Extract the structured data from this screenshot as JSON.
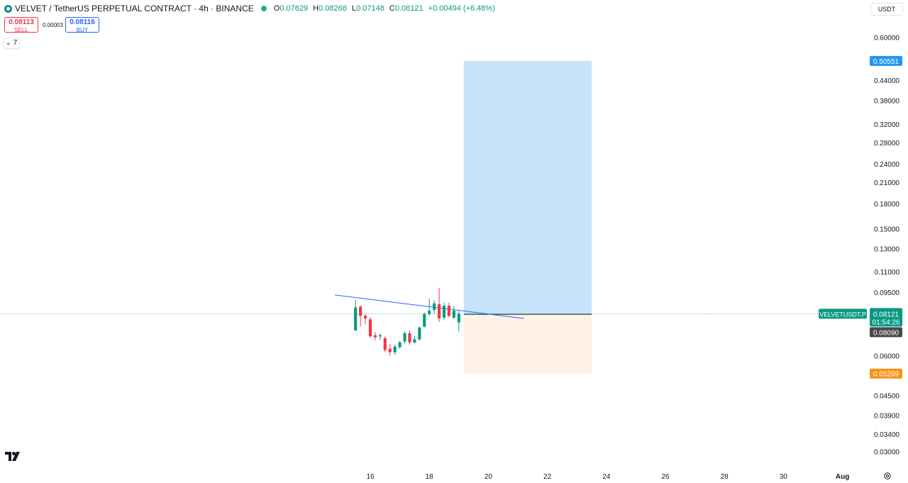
{
  "header": {
    "symbol": "VELVET / TetherUS PERPETUAL CONTRACT · 4h · BINANCE",
    "ohlc": {
      "o_label": "O",
      "o": "0.07629",
      "h_label": "H",
      "h": "0.08268",
      "l_label": "L",
      "l": "0.07148",
      "c_label": "C",
      "c": "0.08121",
      "change": "+0.00494 (+6.48%)"
    }
  },
  "trade": {
    "sell_price": "0.08113",
    "sell_label": "SELL",
    "spread": "0.00003",
    "buy_price": "0.08116",
    "buy_label": "BUY"
  },
  "indicators_toggle": "7",
  "currency": "USDT",
  "colors": {
    "up": "#089981",
    "down": "#f23645",
    "trendline": "#2962ff",
    "target_zone": "#c7e3f9",
    "stop_zone": "#fdf2e3",
    "target_label": "#2196f3",
    "stop_label": "#f7931a",
    "price_label": "#089981",
    "entry_label": "#4a4a4a"
  },
  "chart_data": {
    "type": "candlestick",
    "scale": "log",
    "ylim": [
      0.028,
      0.68
    ],
    "y_ticks": [
      "0.60000",
      "0.44000",
      "0.38000",
      "0.32000",
      "0.28000",
      "0.24000",
      "0.21000",
      "0.18000",
      "0.15000",
      "0.13000",
      "0.11000",
      "0.09500",
      "0.06000",
      "0.04500",
      "0.03900",
      "0.03400",
      "0.03000"
    ],
    "x_ticks": [
      "16",
      "18",
      "20",
      "22",
      "24",
      "26",
      "28",
      "30",
      "Aug"
    ],
    "x_tick_days": [
      16,
      18,
      20,
      22,
      24,
      26,
      28,
      30,
      32
    ],
    "interval_hours": 4,
    "candles": [
      {
        "d": 15.5,
        "o": 0.072,
        "h": 0.0895,
        "l": 0.0718,
        "c": 0.085
      },
      {
        "d": 15.667,
        "o": 0.0855,
        "h": 0.0862,
        "l": 0.074,
        "c": 0.08
      },
      {
        "d": 15.833,
        "o": 0.08,
        "h": 0.0812,
        "l": 0.0752,
        "c": 0.0785
      },
      {
        "d": 16.0,
        "o": 0.078,
        "h": 0.0792,
        "l": 0.0682,
        "c": 0.069
      },
      {
        "d": 16.167,
        "o": 0.0695,
        "h": 0.071,
        "l": 0.067,
        "c": 0.0685
      },
      {
        "d": 16.333,
        "o": 0.069,
        "h": 0.0705,
        "l": 0.0672,
        "c": 0.0695
      },
      {
        "d": 16.5,
        "o": 0.068,
        "h": 0.069,
        "l": 0.0615,
        "c": 0.0625
      },
      {
        "d": 16.667,
        "o": 0.063,
        "h": 0.0652,
        "l": 0.06,
        "c": 0.0615
      },
      {
        "d": 16.833,
        "o": 0.0615,
        "h": 0.065,
        "l": 0.0605,
        "c": 0.064
      },
      {
        "d": 17.0,
        "o": 0.0638,
        "h": 0.0668,
        "l": 0.063,
        "c": 0.066
      },
      {
        "d": 17.167,
        "o": 0.0665,
        "h": 0.0715,
        "l": 0.0655,
        "c": 0.0705
      },
      {
        "d": 17.333,
        "o": 0.0705,
        "h": 0.072,
        "l": 0.065,
        "c": 0.066
      },
      {
        "d": 17.5,
        "o": 0.066,
        "h": 0.069,
        "l": 0.0655,
        "c": 0.0675
      },
      {
        "d": 17.667,
        "o": 0.0675,
        "h": 0.074,
        "l": 0.0668,
        "c": 0.0735
      },
      {
        "d": 17.833,
        "o": 0.074,
        "h": 0.082,
        "l": 0.0735,
        "c": 0.081
      },
      {
        "d": 18.0,
        "o": 0.081,
        "h": 0.0905,
        "l": 0.08,
        "c": 0.083
      },
      {
        "d": 18.167,
        "o": 0.0835,
        "h": 0.0895,
        "l": 0.0815,
        "c": 0.0875
      },
      {
        "d": 18.333,
        "o": 0.087,
        "h": 0.098,
        "l": 0.0765,
        "c": 0.0785
      },
      {
        "d": 18.5,
        "o": 0.079,
        "h": 0.088,
        "l": 0.0775,
        "c": 0.086
      },
      {
        "d": 18.667,
        "o": 0.086,
        "h": 0.088,
        "l": 0.079,
        "c": 0.08
      },
      {
        "d": 18.833,
        "o": 0.079,
        "h": 0.086,
        "l": 0.078,
        "c": 0.083
      },
      {
        "d": 19.0,
        "o": 0.07629,
        "h": 0.08268,
        "l": 0.07148,
        "c": 0.08121
      }
    ],
    "trendline": {
      "start": {
        "d": 14.8,
        "p": 0.093
      },
      "end": {
        "d": 21.2,
        "p": 0.0785
      }
    },
    "position": {
      "start_day": 19.167,
      "end_day": 23.5,
      "entry": 0.0809,
      "target": 0.50551,
      "stop": 0.05269
    },
    "last_price": 0.08121
  },
  "price_labels": {
    "target": "0.50551",
    "symbol_tag": "VELVETUSDT.P",
    "last": "0.08121",
    "countdown": "01:54:26",
    "entry": "0.08090",
    "stop": "0.05269"
  }
}
